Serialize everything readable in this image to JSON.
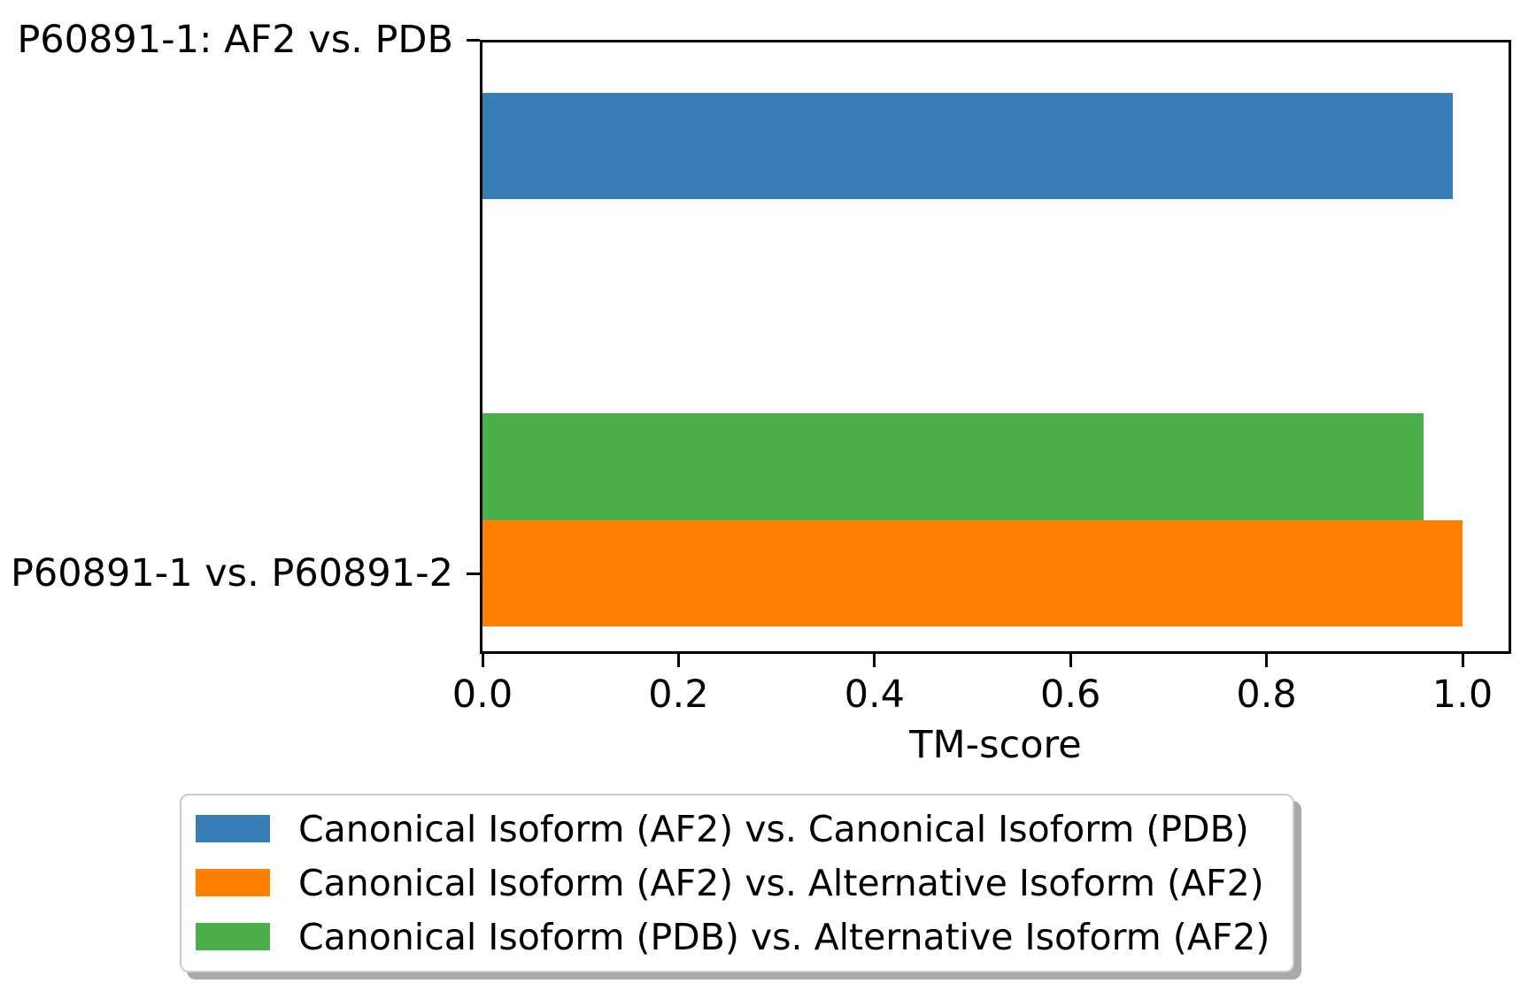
{
  "chart_data": {
    "type": "bar",
    "orientation": "horizontal",
    "title": "",
    "xlabel": "TM-score",
    "ylabel": "",
    "xlim": [
      0.0,
      1.047
    ],
    "xticks": [
      0.0,
      0.2,
      0.4,
      0.6,
      0.8,
      1.0
    ],
    "xtick_decimals": 1,
    "grid": false,
    "legend_position": "bottom",
    "categories": [
      "P60891-1: AF2 vs. PDB",
      "P60891-1 vs. P60891-2"
    ],
    "series": [
      {
        "name": "Canonical Isoform (AF2) vs. Canonical Isoform (PDB)",
        "color": "#377eb8",
        "category": "P60891-1: AF2 vs. PDB",
        "value": 0.99
      },
      {
        "name": "Canonical Isoform (AF2) vs. Alternative Isoform (AF2)",
        "color": "#ff7f00",
        "category": "P60891-1 vs. P60891-2",
        "value": 1.0
      },
      {
        "name": "Canonical Isoform (PDB) vs. Alternative Isoform (AF2)",
        "color": "#4daf4a",
        "category": "P60891-1 vs. P60891-2",
        "value": 0.96
      }
    ]
  }
}
